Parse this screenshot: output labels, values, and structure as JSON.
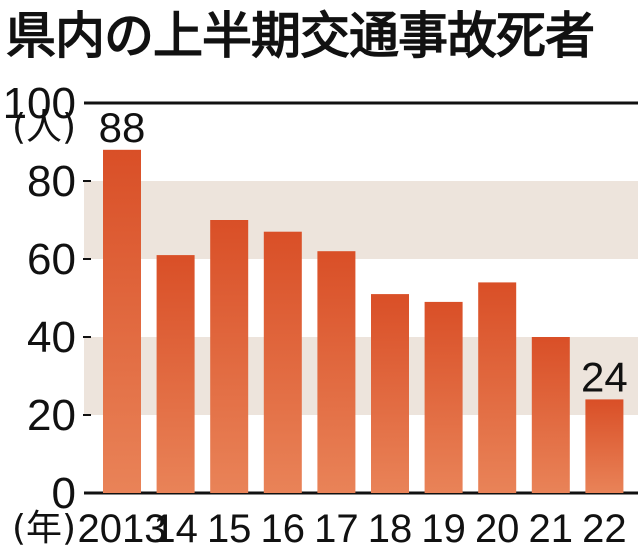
{
  "title": "県内の上半期交通事故死者",
  "chart_data": {
    "type": "bar",
    "title": "県内の上半期交通事故死者",
    "xlabel": "(年)",
    "ylabel": "(人)",
    "categories": [
      "2013",
      "14",
      "15",
      "16",
      "17",
      "18",
      "19",
      "20",
      "21",
      "22"
    ],
    "values": [
      88,
      61,
      70,
      67,
      62,
      51,
      49,
      54,
      40,
      24
    ],
    "data_labels": [
      {
        "index": 0,
        "text": "88"
      },
      {
        "index": 9,
        "text": "24"
      }
    ],
    "yticks": [
      0,
      20,
      40,
      60,
      80,
      100
    ],
    "ylim": [
      0,
      100
    ],
    "grid": false,
    "colors": {
      "bar_top": "#d94f27",
      "bar_bottom": "#e98358",
      "band": "#ede4dc",
      "axis": "#111111"
    }
  }
}
